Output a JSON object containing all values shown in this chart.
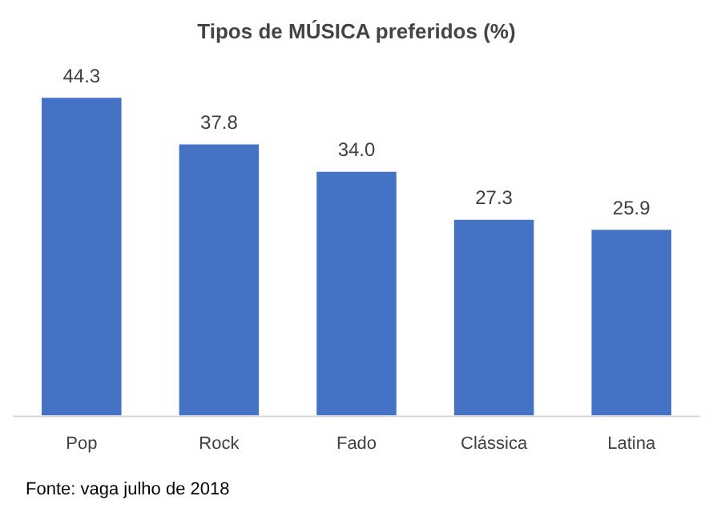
{
  "chart_data": {
    "type": "bar",
    "title": "Tipos de MÚSICA preferidos (%)",
    "categories": [
      "Pop",
      "Rock",
      "Fado",
      "Clássica",
      "Latina"
    ],
    "values": [
      44.3,
      37.8,
      34.0,
      27.3,
      25.9
    ],
    "color": "#4472c4",
    "value_labels": [
      "44.3",
      "37.8",
      "34.0",
      "27.3",
      "25.9"
    ],
    "legend": false,
    "annotations": [
      "Fonte: vaga julho de 2018"
    ]
  }
}
